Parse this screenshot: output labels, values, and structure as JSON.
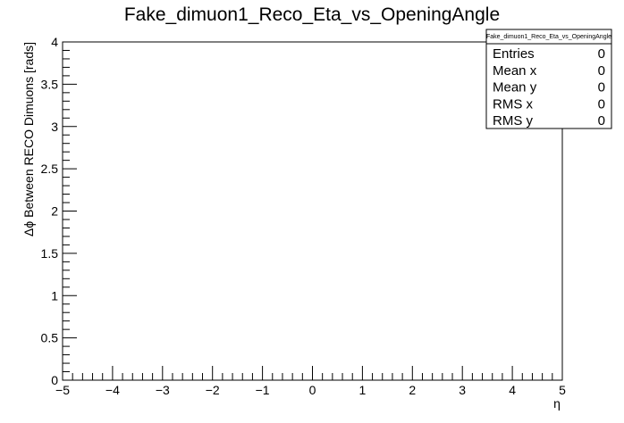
{
  "chart_data": {
    "type": "heatmap",
    "title": "Fake_dimuon1_Reco_Eta_vs_OpeningAngle",
    "xlabel": "η",
    "ylabel": "Δϕ Between RECO Dimuons [rads]",
    "xlim": [
      -5,
      5
    ],
    "ylim": [
      0,
      4
    ],
    "x_ticks": [
      "−5",
      "−4",
      "−3",
      "−2",
      "−1",
      "0",
      "1",
      "2",
      "3",
      "4",
      "5"
    ],
    "y_ticks": [
      "0",
      "0.5",
      "1",
      "1.5",
      "2",
      "2.5",
      "3",
      "3.5",
      "4"
    ],
    "points": [],
    "grid": false
  },
  "stats_box": {
    "title": "Fake_dimuon1_Reco_Eta_vs_OpeningAngle",
    "rows": [
      {
        "label": "Entries",
        "value": "0"
      },
      {
        "label": "Mean x",
        "value": "0"
      },
      {
        "label": "Mean y",
        "value": "0"
      },
      {
        "label": "RMS x",
        "value": "0"
      },
      {
        "label": "RMS y",
        "value": "0"
      }
    ]
  }
}
